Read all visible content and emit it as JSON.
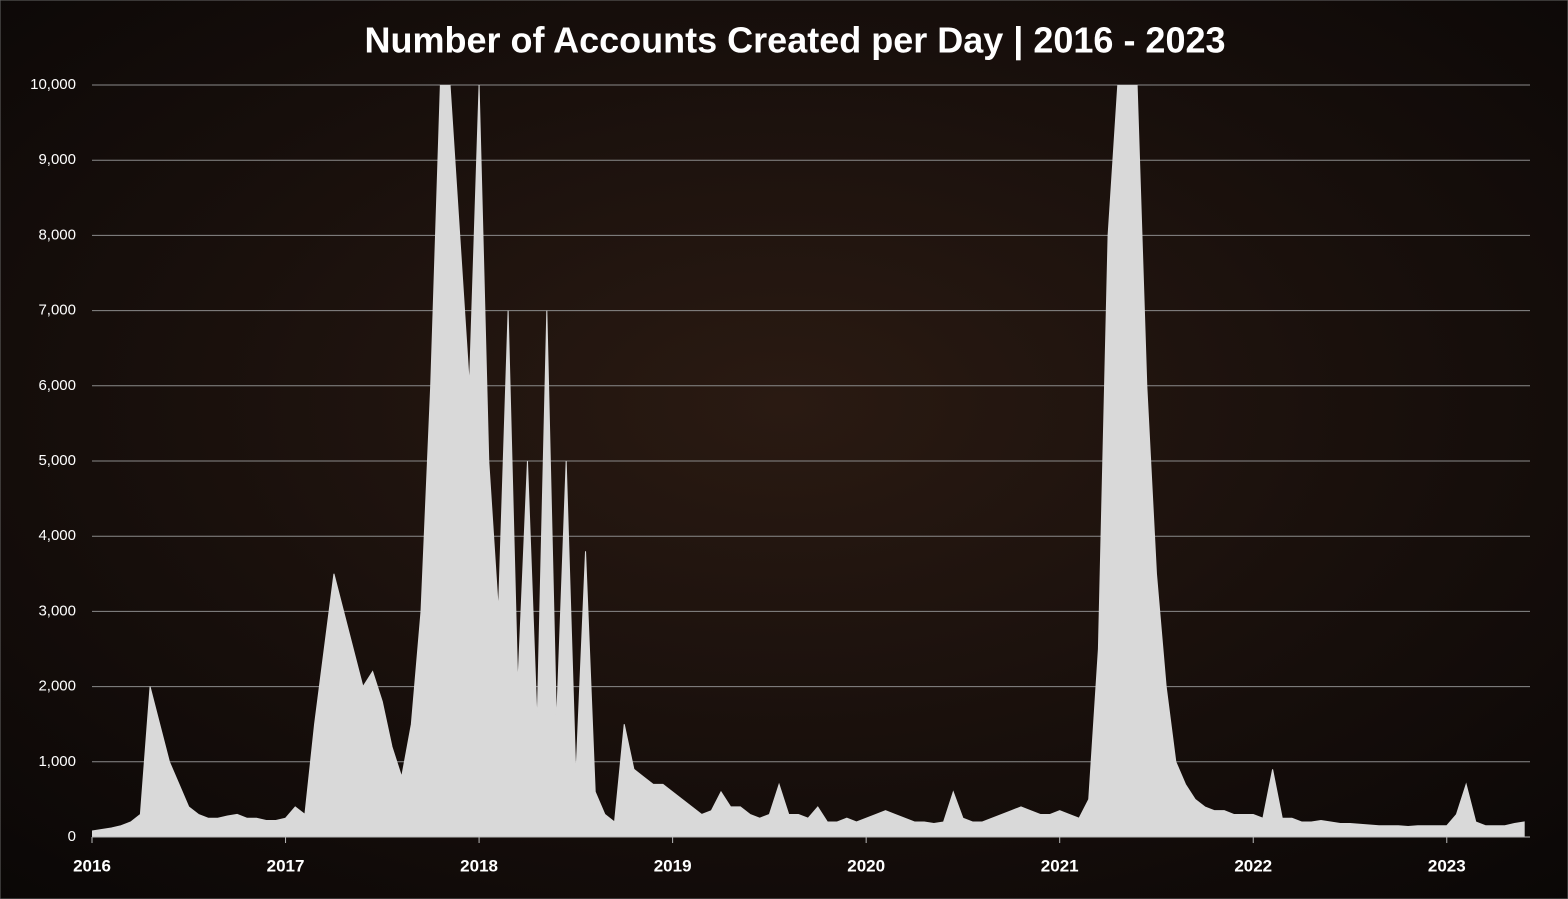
{
  "chart_data": {
    "type": "area",
    "title": "Number of Accounts Created per Day | 2016 - 2023",
    "x": [
      2016.0,
      2016.05,
      2016.1,
      2016.15,
      2016.2,
      2016.25,
      2016.3,
      2016.35,
      2016.4,
      2016.45,
      2016.5,
      2016.55,
      2016.6,
      2016.65,
      2016.7,
      2016.75,
      2016.8,
      2016.85,
      2016.9,
      2016.95,
      2017.0,
      2017.05,
      2017.1,
      2017.15,
      2017.2,
      2017.25,
      2017.3,
      2017.35,
      2017.4,
      2017.45,
      2017.5,
      2017.55,
      2017.6,
      2017.65,
      2017.7,
      2017.75,
      2017.8,
      2017.85,
      2017.9,
      2017.95,
      2018.0,
      2018.05,
      2018.1,
      2018.15,
      2018.2,
      2018.25,
      2018.3,
      2018.35,
      2018.4,
      2018.45,
      2018.5,
      2018.55,
      2018.6,
      2018.65,
      2018.7,
      2018.75,
      2018.8,
      2018.85,
      2018.9,
      2018.95,
      2019.0,
      2019.05,
      2019.1,
      2019.15,
      2019.2,
      2019.25,
      2019.3,
      2019.35,
      2019.4,
      2019.45,
      2019.5,
      2019.55,
      2019.6,
      2019.65,
      2019.7,
      2019.75,
      2019.8,
      2019.85,
      2019.9,
      2019.95,
      2020.0,
      2020.05,
      2020.1,
      2020.15,
      2020.2,
      2020.25,
      2020.3,
      2020.35,
      2020.4,
      2020.45,
      2020.5,
      2020.55,
      2020.6,
      2020.65,
      2020.7,
      2020.75,
      2020.8,
      2020.85,
      2020.9,
      2020.95,
      2021.0,
      2021.05,
      2021.1,
      2021.15,
      2021.2,
      2021.25,
      2021.3,
      2021.35,
      2021.4,
      2021.45,
      2021.5,
      2021.55,
      2021.6,
      2021.65,
      2021.7,
      2021.75,
      2021.8,
      2021.85,
      2021.9,
      2021.95,
      2022.0,
      2022.05,
      2022.1,
      2022.15,
      2022.2,
      2022.25,
      2022.3,
      2022.35,
      2022.4,
      2022.45,
      2022.5,
      2022.55,
      2022.6,
      2022.65,
      2022.7,
      2022.75,
      2022.8,
      2022.85,
      2022.9,
      2022.95,
      2023.0,
      2023.05,
      2023.1,
      2023.15,
      2023.2,
      2023.25,
      2023.3,
      2023.35,
      2023.4
    ],
    "values": [
      80,
      100,
      120,
      150,
      200,
      300,
      2000,
      1500,
      1000,
      700,
      400,
      300,
      250,
      250,
      280,
      300,
      250,
      250,
      220,
      220,
      250,
      400,
      300,
      1500,
      2500,
      3500,
      3000,
      2500,
      2000,
      2200,
      1800,
      1200,
      800,
      1500,
      3000,
      6000,
      10000,
      10000,
      8000,
      6000,
      10000,
      5000,
      3000,
      7000,
      2000,
      5000,
      1500,
      7000,
      1500,
      5000,
      800,
      3800,
      600,
      300,
      200,
      1500,
      900,
      800,
      700,
      700,
      600,
      500,
      400,
      300,
      350,
      600,
      400,
      400,
      300,
      250,
      300,
      700,
      300,
      300,
      250,
      400,
      200,
      200,
      250,
      200,
      250,
      300,
      350,
      300,
      250,
      200,
      200,
      180,
      200,
      600,
      250,
      200,
      200,
      250,
      300,
      350,
      400,
      350,
      300,
      300,
      350,
      300,
      250,
      500,
      2500,
      8000,
      10000,
      10000,
      10000,
      6000,
      3500,
      2000,
      1000,
      700,
      500,
      400,
      350,
      350,
      300,
      300,
      300,
      250,
      900,
      250,
      250,
      200,
      200,
      220,
      200,
      180,
      180,
      170,
      160,
      150,
      150,
      150,
      140,
      150,
      150,
      150,
      150,
      300,
      700,
      200,
      150,
      150,
      150,
      180,
      200
    ],
    "color": "#d9d9d9",
    "xlim": [
      2016,
      2023.43
    ],
    "xticks": [
      2016,
      2017,
      2018,
      2019,
      2020,
      2021,
      2022,
      2023
    ],
    "ylim": [
      0,
      10000
    ],
    "yticks": [
      0,
      {
        "value": 1000,
        "label": "1,000"
      },
      {
        "value": 2000,
        "label": "2,000"
      },
      {
        "value": 3000,
        "label": "3,000"
      },
      {
        "value": 4000,
        "label": "4,000"
      },
      {
        "value": 5000,
        "label": "5,000"
      },
      {
        "value": 6000,
        "label": "6,000"
      },
      {
        "value": 7000,
        "label": "7,000"
      },
      {
        "value": 8000,
        "label": "8,000"
      },
      {
        "value": 9000,
        "label": "9,000"
      },
      {
        "value": 10000,
        "label": "10,000"
      }
    ],
    "grid": true
  }
}
